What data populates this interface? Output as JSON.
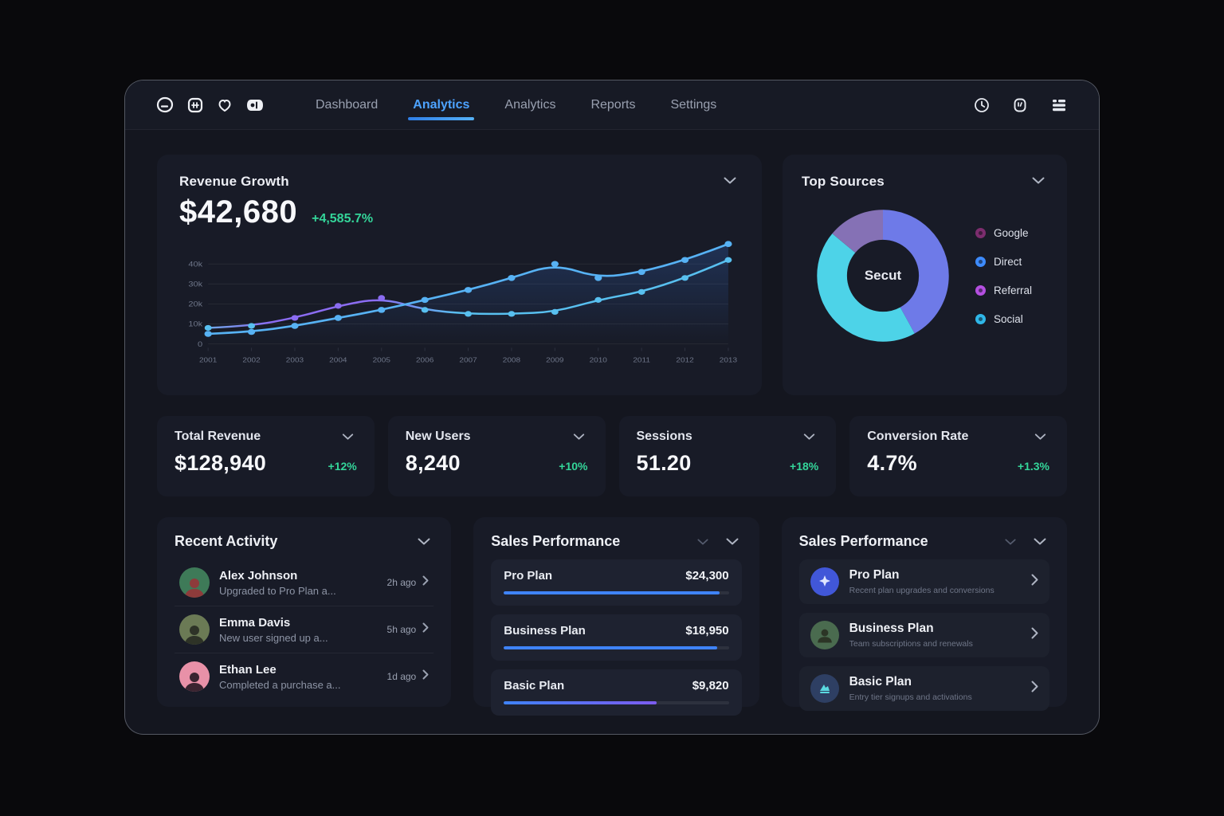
{
  "colors": {
    "accent_blue": "#4da3ff",
    "green": "#34d69a",
    "line_primary": "#57b2f4",
    "line_secondary_purple": "#8b6cf2",
    "bar_blue": "#3f83f8",
    "bar_gradient_end": "#7c5cf0"
  },
  "nav": {
    "items": [
      {
        "label": "Dashboard",
        "active": false
      },
      {
        "label": "Analytics",
        "active": true
      },
      {
        "label": "Analytics",
        "active": false
      },
      {
        "label": "Reports",
        "active": false
      },
      {
        "label": "Settings",
        "active": false
      }
    ]
  },
  "revenue_growth": {
    "title": "Revenue Growth",
    "value": "$42,680",
    "delta": "+4,585.7%"
  },
  "chart_data": [
    {
      "type": "line",
      "title": "Revenue Growth",
      "x": [
        "2001",
        "2002",
        "2003",
        "2004",
        "2005",
        "2006",
        "2007",
        "2008",
        "2009",
        "2010",
        "2011",
        "2012",
        "2013"
      ],
      "series": [
        {
          "name": "revenue-primary",
          "color": "#57b2f4",
          "values": [
            5,
            6,
            9,
            13,
            17,
            22,
            27,
            33,
            40,
            33,
            36,
            42,
            50
          ]
        },
        {
          "name": "revenue-secondary",
          "color": "#58c0f0",
          "purple_color": "#8b6cf2",
          "purple_range": [
            2,
            4
          ],
          "values": [
            8,
            9,
            13,
            19,
            23,
            17,
            15,
            15,
            16,
            22,
            26,
            33,
            42
          ]
        }
      ],
      "ylim": [
        0,
        52
      ],
      "ytick_values": [
        40,
        30,
        20,
        10,
        0
      ],
      "yticks": [
        "40k",
        "30k",
        "20k",
        "10k",
        "0"
      ],
      "grid": true,
      "legend_position": "none"
    },
    {
      "type": "pie",
      "title": "Top Sources",
      "center_label": "Secut",
      "segments": [
        {
          "label": "Direct",
          "value": 42,
          "color": "#6e7ae8"
        },
        {
          "label": "Social",
          "value": 44,
          "color": "#4dd3e8"
        },
        {
          "label": "Google",
          "value": 14,
          "color": "#8571b5"
        }
      ]
    }
  ],
  "top_sources": {
    "title": "Top Sources",
    "center_label": "Secut",
    "legend": [
      {
        "label": "Google",
        "color": "#7c2d6e"
      },
      {
        "label": "Direct",
        "color": "#3d8bfd"
      },
      {
        "label": "Referral",
        "color": "#b44fe0"
      },
      {
        "label": "Social",
        "color": "#2fb7e8"
      }
    ]
  },
  "stats": {
    "items": [
      {
        "label": "Total Revenue",
        "value": "$128,940",
        "delta": "+12%"
      },
      {
        "label": "New Users",
        "value": "8,240",
        "delta": "+10%"
      },
      {
        "label": "Sessions",
        "value": "51.20",
        "delta": "+18%"
      },
      {
        "label": "Conversion Rate",
        "value": "4.7%",
        "delta": "+1.3%"
      }
    ]
  },
  "recent_activity": {
    "title": "Recent Activity",
    "items": [
      {
        "name": "Alex Johnson",
        "desc": "Upgraded to Pro Plan a...",
        "time": "2h ago",
        "avatar_color": "#3e7a58",
        "figure_color": "#8d3b3b"
      },
      {
        "name": "Emma Davis",
        "desc": "New user signed up a...",
        "time": "5h ago",
        "avatar_color": "#6b7a55",
        "figure_color": "#2e3327"
      },
      {
        "name": "Ethan Lee",
        "desc": "Completed a purchase a...",
        "time": "1d ago",
        "avatar_color": "#e891a8",
        "figure_color": "#3a2430"
      }
    ]
  },
  "sales_bars": {
    "title": "Sales Performance",
    "items": [
      {
        "label": "Pro Plan",
        "value": "$24,300",
        "pct": 96,
        "color": "#3f83f8",
        "color_end": "#3f83f8"
      },
      {
        "label": "Business Plan",
        "value": "$18,950",
        "pct": 95,
        "color": "#3f83f8",
        "color_end": "#3f83f8"
      },
      {
        "label": "Basic Plan",
        "value": "$9,820",
        "pct": 68,
        "color": "#3f83f8",
        "color_end": "#7c5cf0"
      }
    ]
  },
  "sales_list": {
    "title": "Sales Performance",
    "items": [
      {
        "title": "Pro Plan",
        "subtitle": "Recent plan upgrades and conversions",
        "icon_color": "#4157d8",
        "glyph_color": "#cdd6ff"
      },
      {
        "title": "Business Plan",
        "subtitle": "Team subscriptions and renewals",
        "icon_color": "#4a6b4f",
        "glyph_color": "#c8d8c0"
      },
      {
        "title": "Basic Plan",
        "subtitle": "Entry tier signups and activations",
        "icon_color": "#2e3f63",
        "glyph_color": "#5ad8e0"
      }
    ]
  }
}
